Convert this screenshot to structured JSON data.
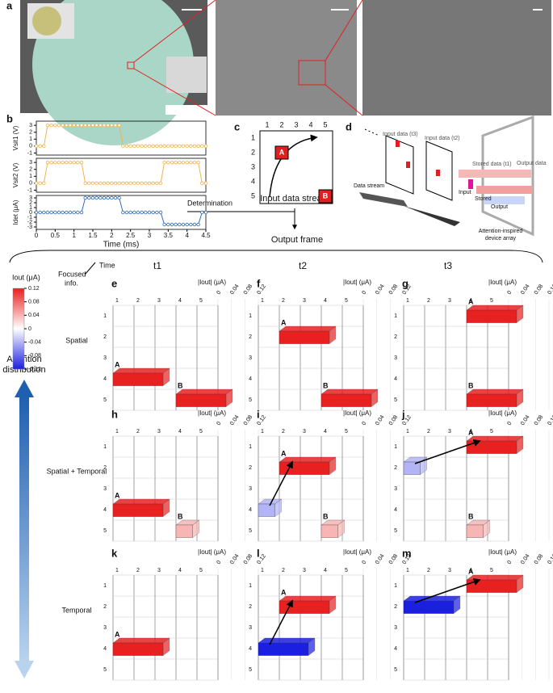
{
  "photos": {
    "label": "a"
  },
  "chart_data": {
    "type": "line",
    "label": "b",
    "xlabel": "Time (ms)",
    "x": [
      0,
      0.1,
      0.2,
      0.3,
      0.4,
      0.5,
      0.6,
      0.7,
      0.8,
      0.9,
      1,
      1.1,
      1.2,
      1.3,
      1.4,
      1.5,
      1.6,
      1.7,
      1.8,
      1.9,
      2,
      2.1,
      2.2,
      2.3,
      2.4,
      2.5,
      2.6,
      2.7,
      2.8,
      2.9,
      3,
      3.1,
      3.2,
      3.3,
      3.4,
      3.5,
      3.6,
      3.7,
      3.8,
      3.9,
      4,
      4.1,
      4.2,
      4.3,
      4.4,
      4.5
    ],
    "xlim": [
      0,
      4.5
    ],
    "xticks": [
      0,
      0.5,
      1,
      1.5,
      2,
      2.5,
      3,
      3.5,
      4,
      4.5
    ],
    "panels": [
      {
        "ylabel": "Vsit1 (V)",
        "ylim": [
          -1.3,
          3.6
        ],
        "yticks": [
          -1,
          0,
          1,
          2,
          3
        ],
        "series": [
          {
            "color": "#f0b44c",
            "values": [
              0,
              0,
              0,
              3,
              3,
              3,
              3,
              3,
              3,
              3,
              3,
              3,
              3,
              3,
              3,
              3,
              3,
              3,
              3,
              3,
              3,
              3,
              3,
              0,
              0,
              0,
              0,
              0,
              0,
              0,
              0,
              0,
              0,
              0,
              0,
              0,
              0,
              0,
              0,
              0,
              0,
              0,
              0,
              0,
              0,
              0
            ]
          }
        ]
      },
      {
        "ylabel": "Vsit2 (V)",
        "ylim": [
          -1.3,
          3.6
        ],
        "yticks": [
          -1,
          0,
          1,
          2,
          3
        ],
        "series": [
          {
            "color": "#f0b44c",
            "values": [
              0,
              0,
              0,
              3,
              3,
              3,
              3,
              3,
              3,
              3,
              3,
              3,
              3,
              0,
              0,
              0,
              0,
              0,
              0,
              0,
              0,
              0,
              0,
              0,
              0,
              0,
              0,
              0,
              0,
              0,
              0,
              0,
              0,
              0,
              3,
              3,
              3,
              3,
              3,
              3,
              3,
              3,
              3,
              3,
              0,
              0
            ]
          }
        ]
      },
      {
        "ylabel": "Idet (μA)",
        "ylim": [
          -3.5,
          3.5
        ],
        "yticks": [
          -3,
          -2,
          -1,
          0,
          1,
          2,
          3
        ],
        "series": [
          {
            "color": "#2f6db5",
            "values": [
              0,
              0,
              0,
              0,
              0,
              0,
              0,
              0,
              0,
              0,
              0,
              0,
              0,
              3,
              3,
              3,
              3,
              3,
              3,
              3,
              3,
              3,
              3,
              0,
              0,
              0,
              0,
              0,
              0,
              0,
              0,
              0,
              0,
              0,
              -2.5,
              -2.5,
              -2.5,
              -2.5,
              -2.5,
              -2.5,
              -2.5,
              -2.5,
              -2.5,
              -2.5,
              0,
              0
            ]
          }
        ]
      }
    ]
  },
  "stream": {
    "label": "c",
    "ticks": [
      1,
      2,
      3,
      4,
      5
    ],
    "caption": "Input data stream",
    "items": [
      {
        "label": "A",
        "row": 2,
        "col": 2
      },
      {
        "label": "B",
        "row": 5,
        "col": 5
      }
    ]
  },
  "flow": {
    "determination": "Determination",
    "output": "Output frame"
  },
  "device": {
    "label": "d",
    "input_t3": "Input data (t3)",
    "input_t2": "Input data (t2)",
    "stored_t1": "Stored data (t1)",
    "output_data": "Output data",
    "data_stream": "Data stream",
    "input": "Input",
    "stored": "Stored",
    "output": "Output",
    "array": [
      "Attention-inspired",
      "device array"
    ]
  },
  "attention": {
    "colorbar": {
      "title": "Iout (μA)",
      "ticks": [
        0.12,
        0.08,
        0.04,
        0,
        -0.04,
        -0.08,
        -0.12
      ]
    },
    "focused": [
      "Focused",
      "info."
    ],
    "time": "Time",
    "times": [
      "t1",
      "t2",
      "t3"
    ],
    "distribution": [
      "Attention",
      "distribution"
    ],
    "rows": [
      "Spatial",
      "Spatial + Temporal",
      "Temporal"
    ],
    "axis_title": "|Iout| (μA)",
    "z_ticks": [
      0,
      0.04,
      0.08,
      0.12
    ],
    "grid_ticks": [
      1,
      2,
      3,
      4,
      5
    ],
    "panels": [
      {
        "label": "e",
        "bars": [
          {
            "label": "A",
            "row": 4,
            "col": 1,
            "value": 0.12
          },
          {
            "label": "B",
            "row": 5,
            "col": 4,
            "value": 0.12
          }
        ]
      },
      {
        "label": "f",
        "bars": [
          {
            "label": "A",
            "row": 2,
            "col": 2,
            "value": 0.12
          },
          {
            "label": "B",
            "row": 5,
            "col": 4,
            "value": 0.12
          }
        ]
      },
      {
        "label": "g",
        "bars": [
          {
            "label": "A",
            "row": 1,
            "col": 4,
            "value": 0.12
          },
          {
            "label": "B",
            "row": 5,
            "col": 4,
            "value": 0.12
          }
        ]
      },
      {
        "label": "h",
        "bars": [
          {
            "label": "A",
            "row": 4,
            "col": 1,
            "value": 0.12
          },
          {
            "label": "B",
            "row": 5,
            "col": 4,
            "value": 0.04
          }
        ]
      },
      {
        "label": "i",
        "bars": [
          {
            "row": 4,
            "col": 1,
            "value": -0.04
          },
          {
            "label": "A",
            "row": 2,
            "col": 2,
            "value": 0.12
          },
          {
            "label": "B",
            "row": 5,
            "col": 4,
            "value": 0.04
          }
        ]
      },
      {
        "label": "j",
        "bars": [
          {
            "row": 2,
            "col": 1,
            "value": -0.04
          },
          {
            "label": "A",
            "row": 1,
            "col": 4,
            "value": 0.12
          },
          {
            "label": "B",
            "row": 5,
            "col": 4,
            "value": 0.04
          }
        ]
      },
      {
        "label": "k",
        "bars": [
          {
            "label": "A",
            "row": 4,
            "col": 1,
            "value": 0.12
          }
        ]
      },
      {
        "label": "l",
        "bars": [
          {
            "row": 4,
            "col": 1,
            "value": -0.12
          },
          {
            "label": "A",
            "row": 2,
            "col": 2,
            "value": 0.12
          }
        ]
      },
      {
        "label": "m",
        "bars": [
          {
            "row": 2,
            "col": 1,
            "value": -0.12
          },
          {
            "label": "A",
            "row": 1,
            "col": 4,
            "value": 0.12
          }
        ]
      }
    ]
  }
}
